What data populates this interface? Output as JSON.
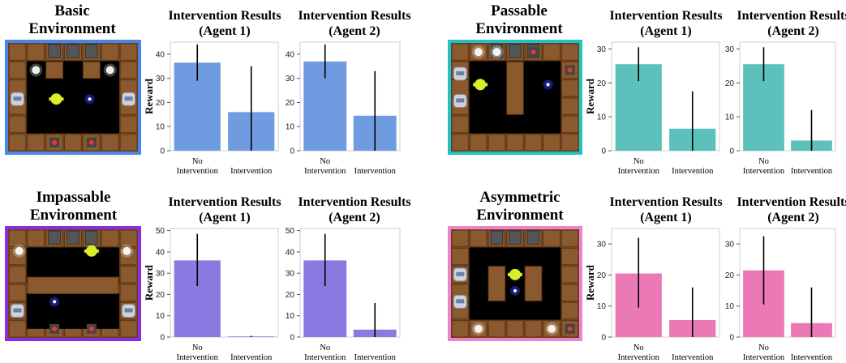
{
  "panels": [
    {
      "id": "basic",
      "env_title": "Basic Environment",
      "env_border_color": "#4a86e8",
      "bar_color": "#6f9be0",
      "env_icon": "basic-grid-environment",
      "charts": [
        {
          "title": "Intervention Results (Agent 1)"
        },
        {
          "title": "Intervention Results (Agent 2)"
        }
      ]
    },
    {
      "id": "passable",
      "env_title": "Passable Environment",
      "env_border_color": "#22c1c3",
      "bar_color": "#5cc0bd",
      "env_icon": "passable-grid-environment",
      "charts": [
        {
          "title": "Intervention Results (Agent 1)"
        },
        {
          "title": "Intervention Results (Agent 2)"
        }
      ]
    },
    {
      "id": "impassable",
      "env_title": "Impassable Environment",
      "env_border_color": "#8b2be2",
      "bar_color": "#8b78e0",
      "env_icon": "impassable-grid-environment",
      "charts": [
        {
          "title": "Intervention Results (Agent 1)"
        },
        {
          "title": "Intervention Results (Agent 2)"
        }
      ]
    },
    {
      "id": "asymmetric",
      "env_title": "Asymmetric Environment",
      "env_border_color": "#ee82d0",
      "bar_color": "#ea79b6",
      "env_icon": "asymmetric-grid-environment",
      "charts": [
        {
          "title": "Intervention Results (Agent 1)"
        },
        {
          "title": "Intervention Results (Agent 2)"
        }
      ]
    }
  ],
  "chart_data": [
    {
      "type": "bar",
      "panel": "basic",
      "title": "Intervention Results (Agent 1)",
      "ylabel": "Reward",
      "ylim": [
        0,
        45
      ],
      "yticks": [
        0,
        10,
        20,
        30,
        40
      ],
      "categories": [
        "No Intervention",
        "Intervention"
      ],
      "values": [
        36.5,
        16
      ],
      "error_low": [
        29,
        0
      ],
      "error_high": [
        44,
        35
      ],
      "color": "#6f9be0"
    },
    {
      "type": "bar",
      "panel": "basic",
      "title": "Intervention Results (Agent 2)",
      "ylabel": "",
      "ylim": [
        0,
        45
      ],
      "yticks": [
        0,
        10,
        20,
        30,
        40
      ],
      "categories": [
        "No Intervention",
        "Intervention"
      ],
      "values": [
        37,
        14.5
      ],
      "error_low": [
        30,
        0
      ],
      "error_high": [
        44,
        33
      ],
      "color": "#6f9be0"
    },
    {
      "type": "bar",
      "panel": "passable",
      "title": "Intervention Results (Agent 1)",
      "ylabel": "Reward",
      "ylim": [
        0,
        32
      ],
      "yticks": [
        0,
        10,
        20,
        30
      ],
      "categories": [
        "No Intervention",
        "Intervention"
      ],
      "values": [
        25.5,
        6.5
      ],
      "error_low": [
        20.5,
        0
      ],
      "error_high": [
        30.5,
        17.5
      ],
      "color": "#5cc0bd"
    },
    {
      "type": "bar",
      "panel": "passable",
      "title": "Intervention Results (Agent 2)",
      "ylabel": "",
      "ylim": [
        0,
        32
      ],
      "yticks": [
        0,
        10,
        20,
        30
      ],
      "categories": [
        "No Intervention",
        "Intervention"
      ],
      "values": [
        25.5,
        3
      ],
      "error_low": [
        20.5,
        0
      ],
      "error_high": [
        30.5,
        12
      ],
      "color": "#5cc0bd"
    },
    {
      "type": "bar",
      "panel": "impassable",
      "title": "Intervention Results (Agent 1)",
      "ylabel": "Reward",
      "ylim": [
        0,
        51
      ],
      "yticks": [
        0,
        10,
        20,
        30,
        40,
        50
      ],
      "categories": [
        "No Intervention",
        "Intervention"
      ],
      "values": [
        36,
        0.3
      ],
      "error_low": [
        24,
        0
      ],
      "error_high": [
        48.5,
        0.6
      ],
      "color": "#8b78e0"
    },
    {
      "type": "bar",
      "panel": "impassable",
      "title": "Intervention Results (Agent 2)",
      "ylabel": "",
      "ylim": [
        0,
        51
      ],
      "yticks": [
        0,
        10,
        20,
        30,
        40,
        50
      ],
      "categories": [
        "No Intervention",
        "Intervention"
      ],
      "values": [
        36,
        3.5
      ],
      "error_low": [
        24,
        0
      ],
      "error_high": [
        48.5,
        16
      ],
      "color": "#8b78e0"
    },
    {
      "type": "bar",
      "panel": "asymmetric",
      "title": "Intervention Results (Agent 1)",
      "ylabel": "Reward",
      "ylim": [
        0,
        35
      ],
      "yticks": [
        0,
        10,
        20,
        30
      ],
      "categories": [
        "No Intervention",
        "Intervention"
      ],
      "values": [
        20.5,
        5.5
      ],
      "error_low": [
        9.5,
        0
      ],
      "error_high": [
        32,
        16
      ],
      "color": "#ea79b6"
    },
    {
      "type": "bar",
      "panel": "asymmetric",
      "title": "Intervention Results (Agent 2)",
      "ylabel": "",
      "ylim": [
        0,
        35
      ],
      "yticks": [
        0,
        10,
        20,
        30
      ],
      "categories": [
        "No Intervention",
        "Intervention"
      ],
      "values": [
        21.5,
        4.5
      ],
      "error_low": [
        10.5,
        0
      ],
      "error_high": [
        32.5,
        16
      ],
      "color": "#ea79b6"
    }
  ]
}
